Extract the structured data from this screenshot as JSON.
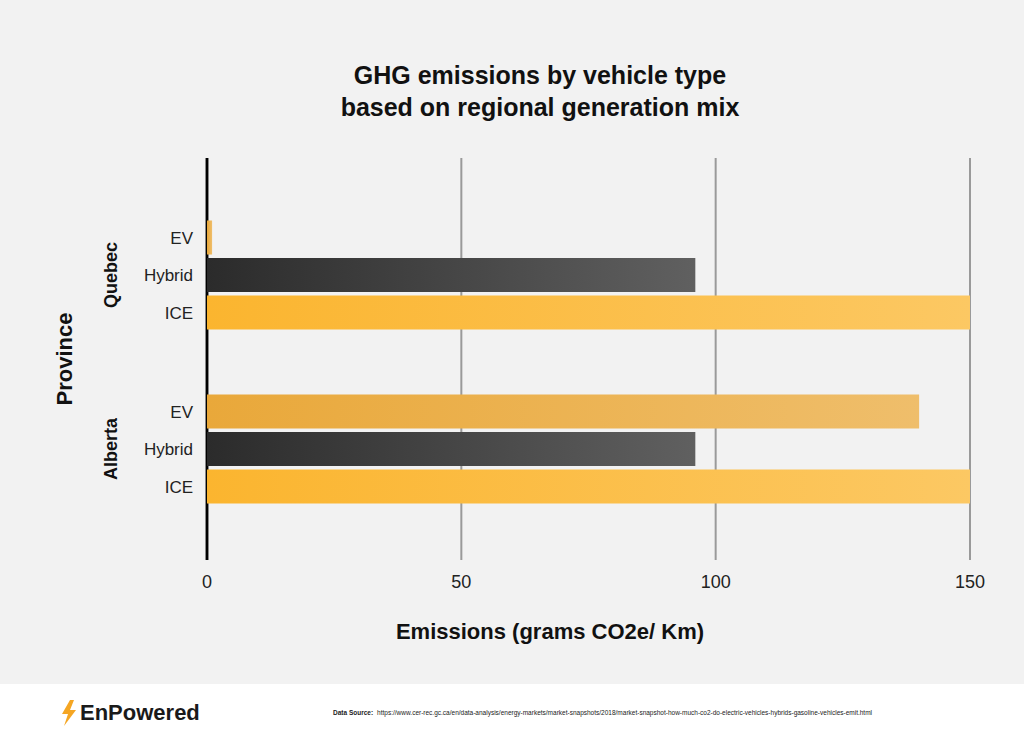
{
  "chart_data": {
    "type": "bar",
    "orientation": "horizontal",
    "title": [
      "GHG emissions by vehicle type",
      "based on regional generation mix"
    ],
    "x_label": "Emissions (grams CO2e/ Km)",
    "y_label": "Province",
    "categories": [
      "Quebec",
      "Alberta"
    ],
    "series": [
      {
        "name": "EV",
        "color": "#e9a83a",
        "values": [
          1,
          140
        ]
      },
      {
        "name": "Hybrid",
        "color": "#2b2b2b",
        "values": [
          96,
          96
        ]
      },
      {
        "name": "ICE",
        "color": "#fbb52f",
        "values": [
          150,
          150
        ]
      }
    ],
    "xlim": [
      0,
      150
    ],
    "xticks": [
      0,
      50,
      100,
      150
    ],
    "grid": true
  },
  "footer": {
    "brand": "EnPowered",
    "source_label": "Data Source:",
    "source_url": "https://www.cer-rec.gc.ca/en/data-analysis/energy-markets/market-snapshots/2018/market-snapshot-how-much-co2-do-electric-vehicles-hybrids-gasoline-vehicles-emit.html"
  }
}
